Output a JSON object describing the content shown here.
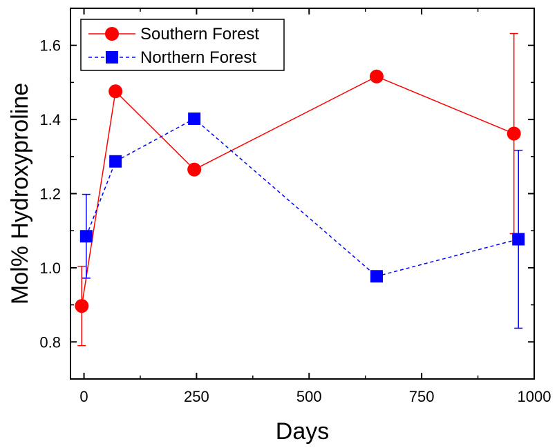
{
  "chart_data": {
    "type": "line",
    "title": "",
    "xlabel": "Days",
    "ylabel": "Mol% Hydroxyproline",
    "xlim": [
      -30,
      1000
    ],
    "ylim": [
      0.7,
      1.7
    ],
    "xticks": [
      0,
      250,
      500,
      750,
      1000
    ],
    "yticks": [
      0.8,
      1.0,
      1.2,
      1.4,
      1.6
    ],
    "x_tick_labels": [
      "0",
      "250",
      "500",
      "750",
      "1000"
    ],
    "y_tick_labels": [
      "0.8",
      "1.0",
      "1.2",
      "1.4",
      "1.6"
    ],
    "grid": false,
    "legend_position": "top-left",
    "series": [
      {
        "name": "Southern Forest",
        "color": "#ff0000",
        "marker": "circle",
        "line_style": "solid",
        "x": [
          -5,
          70,
          245,
          650,
          955
        ],
        "y": [
          0.897,
          1.476,
          1.265,
          1.516,
          1.362
        ],
        "error": [
          0.107,
          null,
          null,
          null,
          0.27
        ]
      },
      {
        "name": "Northern Forest",
        "color": "#0000ff",
        "marker": "square",
        "line_style": "dashed",
        "x": [
          5,
          70,
          245,
          650,
          965
        ],
        "y": [
          1.085,
          1.287,
          1.402,
          0.977,
          1.077
        ],
        "error": [
          0.113,
          null,
          null,
          null,
          0.24
        ]
      }
    ]
  }
}
